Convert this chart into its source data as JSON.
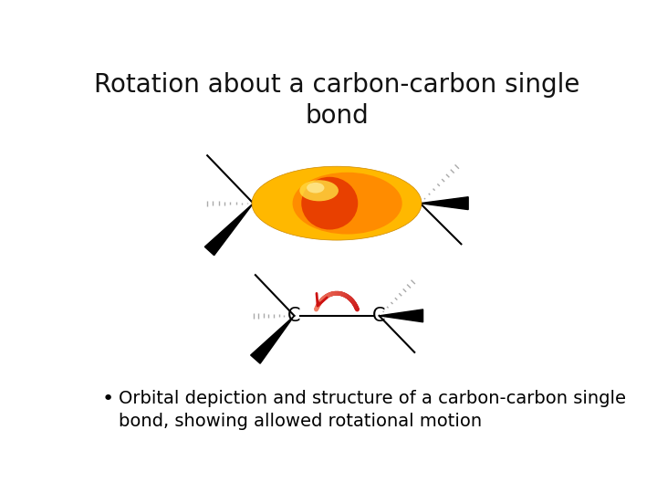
{
  "title": "Rotation about a carbon-carbon single\nbond",
  "title_fontsize": 20,
  "title_fontweight": "normal",
  "bullet_text": "Orbital depiction and structure of a carbon-carbon single\nbond, showing allowed rotational motion",
  "bullet_fontsize": 14,
  "bg_color": "#ffffff",
  "orbital_color_outer": "#FFB800",
  "orbital_color_mid": "#FF8C00",
  "orbital_color_inner": "#E84000",
  "arrow_color_dark": "#CC1111",
  "arrow_color_light": "#E87070"
}
